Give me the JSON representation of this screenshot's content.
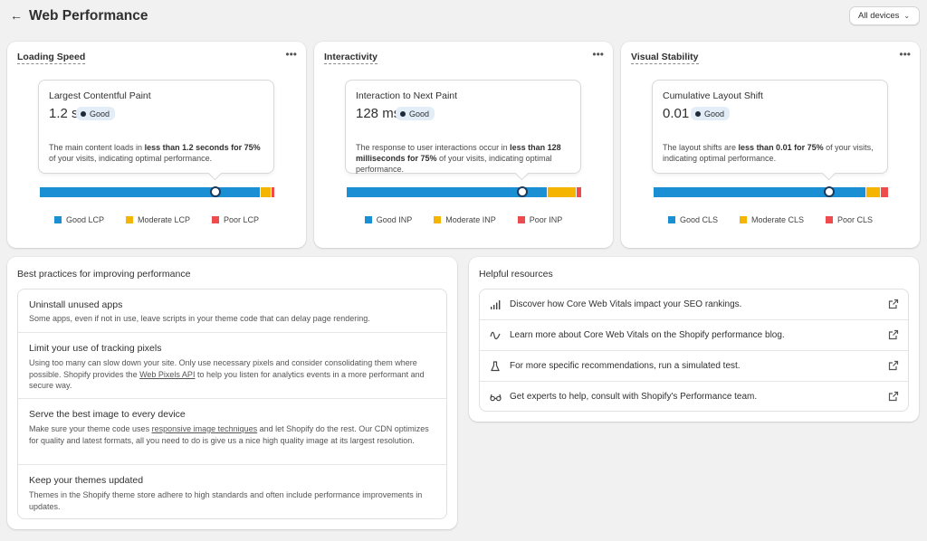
{
  "header": {
    "back_icon": "arrow-left-icon",
    "title": "Web Performance",
    "device_selector": "All devices"
  },
  "metrics": [
    {
      "title": "Loading Speed",
      "metric_name": "Largest Contentful Paint",
      "value": "1.2 s",
      "status": "Good",
      "desc_1": "The main content loads in ",
      "desc_bold_1": "less than 1.2 seconds for 75%",
      "desc_2": " of your visits, indicating optimal performance.",
      "legend": [
        "Good LCP",
        "Moderate LCP",
        "Poor LCP"
      ],
      "distribution": {
        "good": 0.9,
        "moderate": 0.04,
        "poor": 0.01
      },
      "marker_fraction": 0.75
    },
    {
      "title": "Interactivity",
      "metric_name": "Interaction to Next Paint",
      "value": "128 ms",
      "status": "Good",
      "desc_1": "The response to user interactions occur in ",
      "desc_bold_1": "less than 128 milliseconds for 75%",
      "desc_2": " of your visits, indicating optimal performance.",
      "legend": [
        "Good INP",
        "Moderate INP",
        "Poor INP"
      ],
      "distribution": {
        "good": 0.85,
        "moderate": 0.12,
        "poor": 0.02
      },
      "marker_fraction": 0.75
    },
    {
      "title": "Visual Stability",
      "metric_name": "Cumulative Layout Shift",
      "value": "0.01",
      "status": "Good",
      "desc_1": "The layout shifts are ",
      "desc_bold_1": "less than 0.01 for 75%",
      "desc_2": " of your visits, indicating optimal performance.",
      "legend": [
        "Good CLS",
        "Moderate CLS",
        "Poor CLS"
      ],
      "distribution": {
        "good": 0.9,
        "moderate": 0.06,
        "poor": 0.03
      },
      "marker_fraction": 0.75
    }
  ],
  "practices": {
    "title": "Best practices for improving performance",
    "items": [
      {
        "title": "Uninstall unused apps",
        "desc": "Some apps, even if not in use, leave scripts in your theme code that can delay page rendering."
      },
      {
        "title": "Limit your use of tracking pixels",
        "desc_1": "Using too many can slow down your site. Only use necessary pixels and consider consolidating them where possible. Shopify provides the ",
        "link": "Web Pixels API",
        "desc_2": " to help you listen for analytics events in a more performant and secure way."
      },
      {
        "title": "Serve the best image to every device",
        "desc_1": "Make sure your theme code uses ",
        "link": "responsive image techniques",
        "desc_2": " and let Shopify do the rest. Our CDN optimizes for quality and latest formats, all you need to do is give us a nice high quality image at its largest resolution."
      },
      {
        "title": "Keep your themes updated",
        "desc": "Themes in the Shopify theme store adhere to high standards and often include performance improvements in updates."
      }
    ]
  },
  "resources": {
    "title": "Helpful resources",
    "items": [
      {
        "icon": "bar-chart-icon",
        "pre": "Discover how ",
        "strong": "Core Web Vitals impact your SEO rankings.",
        "post": ""
      },
      {
        "icon": "wave-icon",
        "pre": "Learn more about ",
        "strong": "Core Web Vitals",
        "post": " on the Shopify performance blog."
      },
      {
        "icon": "flask-icon",
        "pre": "For more specific recommendations, ",
        "strong": "run a simulated test.",
        "post": ""
      },
      {
        "icon": "glasses-icon",
        "pre": "Get experts to help, ",
        "strong": "consult with Shopify's Performance team.",
        "post": ""
      }
    ]
  },
  "colors": {
    "good": "#1a8fd3",
    "moderate": "#f5b400",
    "poor": "#ee4c4c",
    "badge_bg": "#e2edf8",
    "page_bg": "#f1f1f1"
  }
}
